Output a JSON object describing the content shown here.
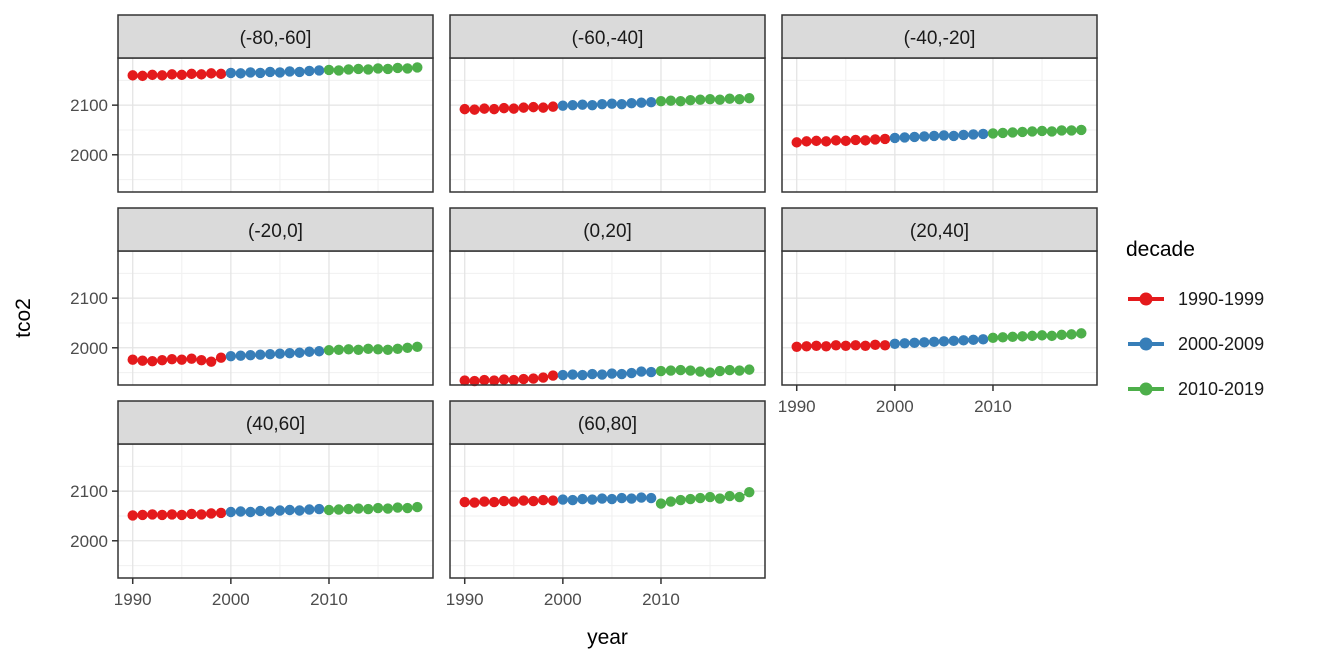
{
  "chart_data": {
    "type": "scatter",
    "title": "",
    "xlabel": "year",
    "ylabel": "tco2",
    "grid": true,
    "legend": {
      "title": "decade",
      "position": "right",
      "entries": [
        {
          "label": "1990-1999",
          "color": "#E41A1C"
        },
        {
          "label": "2000-2009",
          "color": "#377EB8"
        },
        {
          "label": "2010-2019",
          "color": "#4DAF4A"
        }
      ]
    },
    "x_ticks": [
      1990,
      2000,
      2010
    ],
    "x_minor_ticks": [
      1995,
      2005,
      2015
    ],
    "y_ticks": [
      2000,
      2100
    ],
    "y_minor_ticks": [
      1950,
      2050,
      2150
    ],
    "xlim": [
      1988.5,
      2020.6
    ],
    "ylim": [
      1925,
      2195
    ],
    "x": [
      1990,
      1991,
      1992,
      1993,
      1994,
      1995,
      1996,
      1997,
      1998,
      1999,
      2000,
      2001,
      2002,
      2003,
      2004,
      2005,
      2006,
      2007,
      2008,
      2009,
      2010,
      2011,
      2012,
      2013,
      2014,
      2015,
      2016,
      2017,
      2018,
      2019
    ],
    "facets": [
      {
        "label": "(-80,-60]",
        "values": [
          2160,
          2159,
          2161,
          2160,
          2162,
          2161,
          2163,
          2162,
          2164,
          2163,
          2165,
          2164,
          2166,
          2165,
          2167,
          2166,
          2168,
          2167,
          2169,
          2170,
          2171,
          2170,
          2172,
          2173,
          2172,
          2174,
          2173,
          2175,
          2174,
          2176
        ]
      },
      {
        "label": "(-60,-40]",
        "values": [
          2092,
          2091,
          2093,
          2092,
          2094,
          2093,
          2095,
          2096,
          2095,
          2097,
          2099,
          2100,
          2101,
          2100,
          2102,
          2103,
          2102,
          2104,
          2105,
          2106,
          2108,
          2109,
          2108,
          2110,
          2111,
          2112,
          2111,
          2113,
          2112,
          2114
        ]
      },
      {
        "label": "(-40,-20]",
        "values": [
          2025,
          2027,
          2028,
          2027,
          2029,
          2028,
          2030,
          2029,
          2031,
          2032,
          2034,
          2035,
          2036,
          2037,
          2038,
          2039,
          2038,
          2040,
          2041,
          2042,
          2043,
          2044,
          2045,
          2046,
          2047,
          2048,
          2047,
          2049,
          2049,
          2050
        ]
      },
      {
        "label": "(-20,0]",
        "values": [
          1976,
          1974,
          1973,
          1975,
          1977,
          1976,
          1978,
          1975,
          1972,
          1980,
          1983,
          1984,
          1985,
          1986,
          1987,
          1988,
          1989,
          1990,
          1992,
          1993,
          1995,
          1996,
          1997,
          1996,
          1998,
          1997,
          1996,
          1998,
          2000,
          2002
        ]
      },
      {
        "label": "(0,20]",
        "values": [
          1934,
          1933,
          1935,
          1934,
          1936,
          1935,
          1937,
          1938,
          1940,
          1944,
          1945,
          1946,
          1945,
          1947,
          1946,
          1948,
          1947,
          1949,
          1952,
          1951,
          1953,
          1954,
          1955,
          1954,
          1952,
          1950,
          1953,
          1955,
          1954,
          1956
        ]
      },
      {
        "label": "(20,40]",
        "values": [
          2002,
          2003,
          2004,
          2003,
          2005,
          2004,
          2005,
          2004,
          2006,
          2005,
          2008,
          2009,
          2010,
          2011,
          2012,
          2013,
          2014,
          2015,
          2016,
          2017,
          2020,
          2021,
          2022,
          2023,
          2024,
          2025,
          2024,
          2026,
          2027,
          2029
        ]
      },
      {
        "label": "(40,60]",
        "values": [
          2051,
          2052,
          2053,
          2052,
          2053,
          2052,
          2054,
          2053,
          2055,
          2056,
          2058,
          2059,
          2058,
          2060,
          2059,
          2061,
          2062,
          2061,
          2063,
          2064,
          2062,
          2063,
          2064,
          2065,
          2064,
          2066,
          2065,
          2067,
          2066,
          2068
        ]
      },
      {
        "label": "(60,80]",
        "values": [
          2078,
          2077,
          2079,
          2078,
          2080,
          2079,
          2081,
          2080,
          2082,
          2081,
          2083,
          2082,
          2084,
          2083,
          2085,
          2084,
          2086,
          2085,
          2087,
          2086,
          2075,
          2079,
          2082,
          2084,
          2086,
          2088,
          2085,
          2090,
          2088,
          2098
        ]
      }
    ],
    "colors": {
      "strip_bg": "#DADADA",
      "panel_border": "#333333",
      "strip_text": "#1a1a1a",
      "grid_major": "#E4E4E4",
      "grid_minor": "#F0F0F0",
      "tick_label": "#4D4D4D",
      "tick_mark": "#333333",
      "background": "#FFFFFF"
    }
  }
}
